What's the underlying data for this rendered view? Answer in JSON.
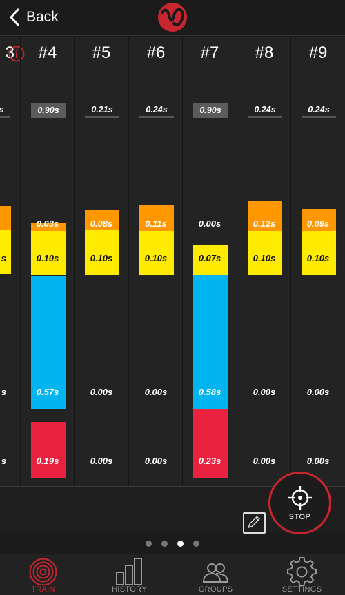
{
  "header": {
    "back_label": "Back"
  },
  "columns": [
    {
      "title": "3",
      "reaction": "s",
      "reaction_style": "ul",
      "orange": "",
      "yellow": "s",
      "blue": "s",
      "red": "s",
      "info_icon": true
    },
    {
      "title": "#4",
      "reaction": "0.90s",
      "reaction_style": "hl",
      "orange": "0.03s",
      "yellow": "0.10s",
      "blue": "0.57s",
      "red": "0.19s"
    },
    {
      "title": "#5",
      "reaction": "0.21s",
      "reaction_style": "ul",
      "orange": "0.08s",
      "yellow": "0.10s",
      "blue": "0.00s",
      "red": "0.00s"
    },
    {
      "title": "#6",
      "reaction": "0.24s",
      "reaction_style": "ul",
      "orange": "0.11s",
      "yellow": "0.10s",
      "blue": "0.00s",
      "red": "0.00s"
    },
    {
      "title": "#7",
      "reaction": "0.90s",
      "reaction_style": "hl",
      "orange": "0.00s",
      "yellow": "0.07s",
      "blue": "0.58s",
      "red": "0.23s"
    },
    {
      "title": "#8",
      "reaction": "0.24s",
      "reaction_style": "ul",
      "orange": "0.12s",
      "yellow": "0.10s",
      "blue": "0.00s",
      "red": "0.00s"
    },
    {
      "title": "#9",
      "reaction": "0.24s",
      "reaction_style": "ul",
      "orange": "0.09s",
      "yellow": "0.10s",
      "blue": "0.00s",
      "red": "0.00s"
    }
  ],
  "colors": {
    "orange": "#ff9800",
    "yellow": "#ffeb00",
    "blue": "#00b4f0",
    "red": "#e8223f",
    "accent": "#c8262f"
  },
  "stop_button": {
    "label": "STOP",
    "icon": "crosshair-icon"
  },
  "pager": {
    "count": 4,
    "active": 2
  },
  "tabs": [
    {
      "label": "TRAIN",
      "icon": "target-icon",
      "active": true
    },
    {
      "label": "HISTORY",
      "icon": "bar-chart-icon",
      "active": false
    },
    {
      "label": "GROUPS",
      "icon": "people-icon",
      "active": false
    },
    {
      "label": "SETTINGS",
      "icon": "gear-icon",
      "active": false
    }
  ]
}
